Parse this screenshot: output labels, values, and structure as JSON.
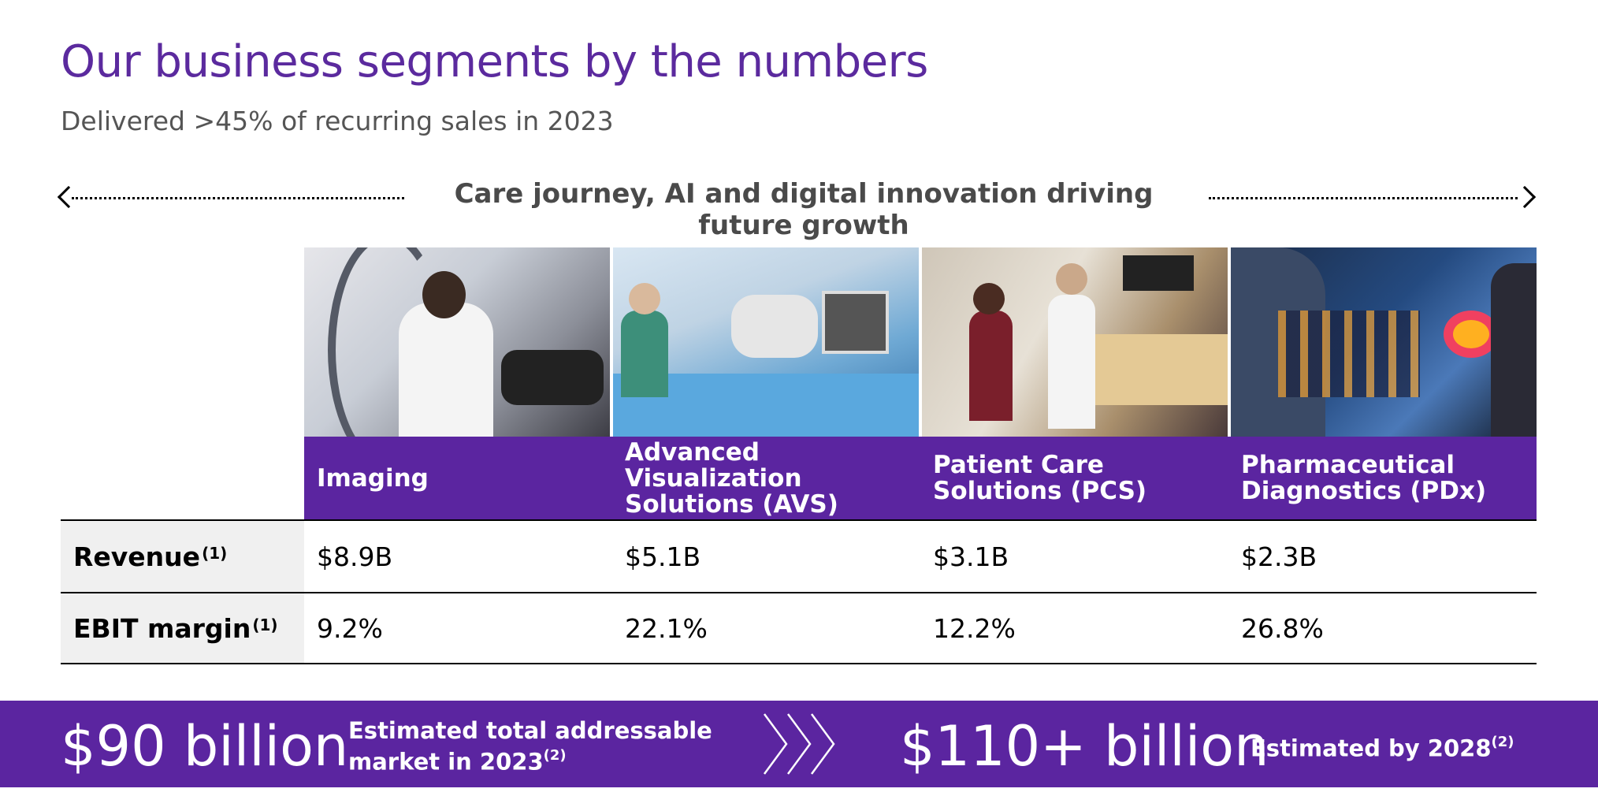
{
  "header": {
    "title": "Our business segments by the numbers",
    "subtitle": "Delivered >45% of recurring sales in 2023"
  },
  "journey": {
    "label": "Care journey, AI and digital innovation driving future growth"
  },
  "segments": [
    {
      "name_line1": "Imaging",
      "name_line2": "",
      "revenue": "$8.9B",
      "ebit_margin": "9.2%"
    },
    {
      "name_line1": "Advanced Visualization",
      "name_line2": "Solutions (AVS)",
      "revenue": "$5.1B",
      "ebit_margin": "22.1%"
    },
    {
      "name_line1": "Patient Care",
      "name_line2": "Solutions (PCS)",
      "revenue": "$3.1B",
      "ebit_margin": "12.2%"
    },
    {
      "name_line1": "Pharmaceutical",
      "name_line2": "Diagnostics (PDx)",
      "revenue": "$2.3B",
      "ebit_margin": "26.8%"
    }
  ],
  "metrics": {
    "revenue_label": "Revenue",
    "revenue_note": "(1)",
    "ebit_label": "EBIT margin",
    "ebit_note": "(1)"
  },
  "banner": {
    "current_value": "$90 billion",
    "current_note_line1": "Estimated total addressable",
    "current_note_line2": "market in 2023",
    "current_note_ref": "(2)",
    "future_value": "$110+ billion",
    "future_note": "Estimated by 2028",
    "future_note_ref": "(2)"
  },
  "colors": {
    "brand_purple": "#5b25a0",
    "title_purple": "#5b2a9e"
  }
}
